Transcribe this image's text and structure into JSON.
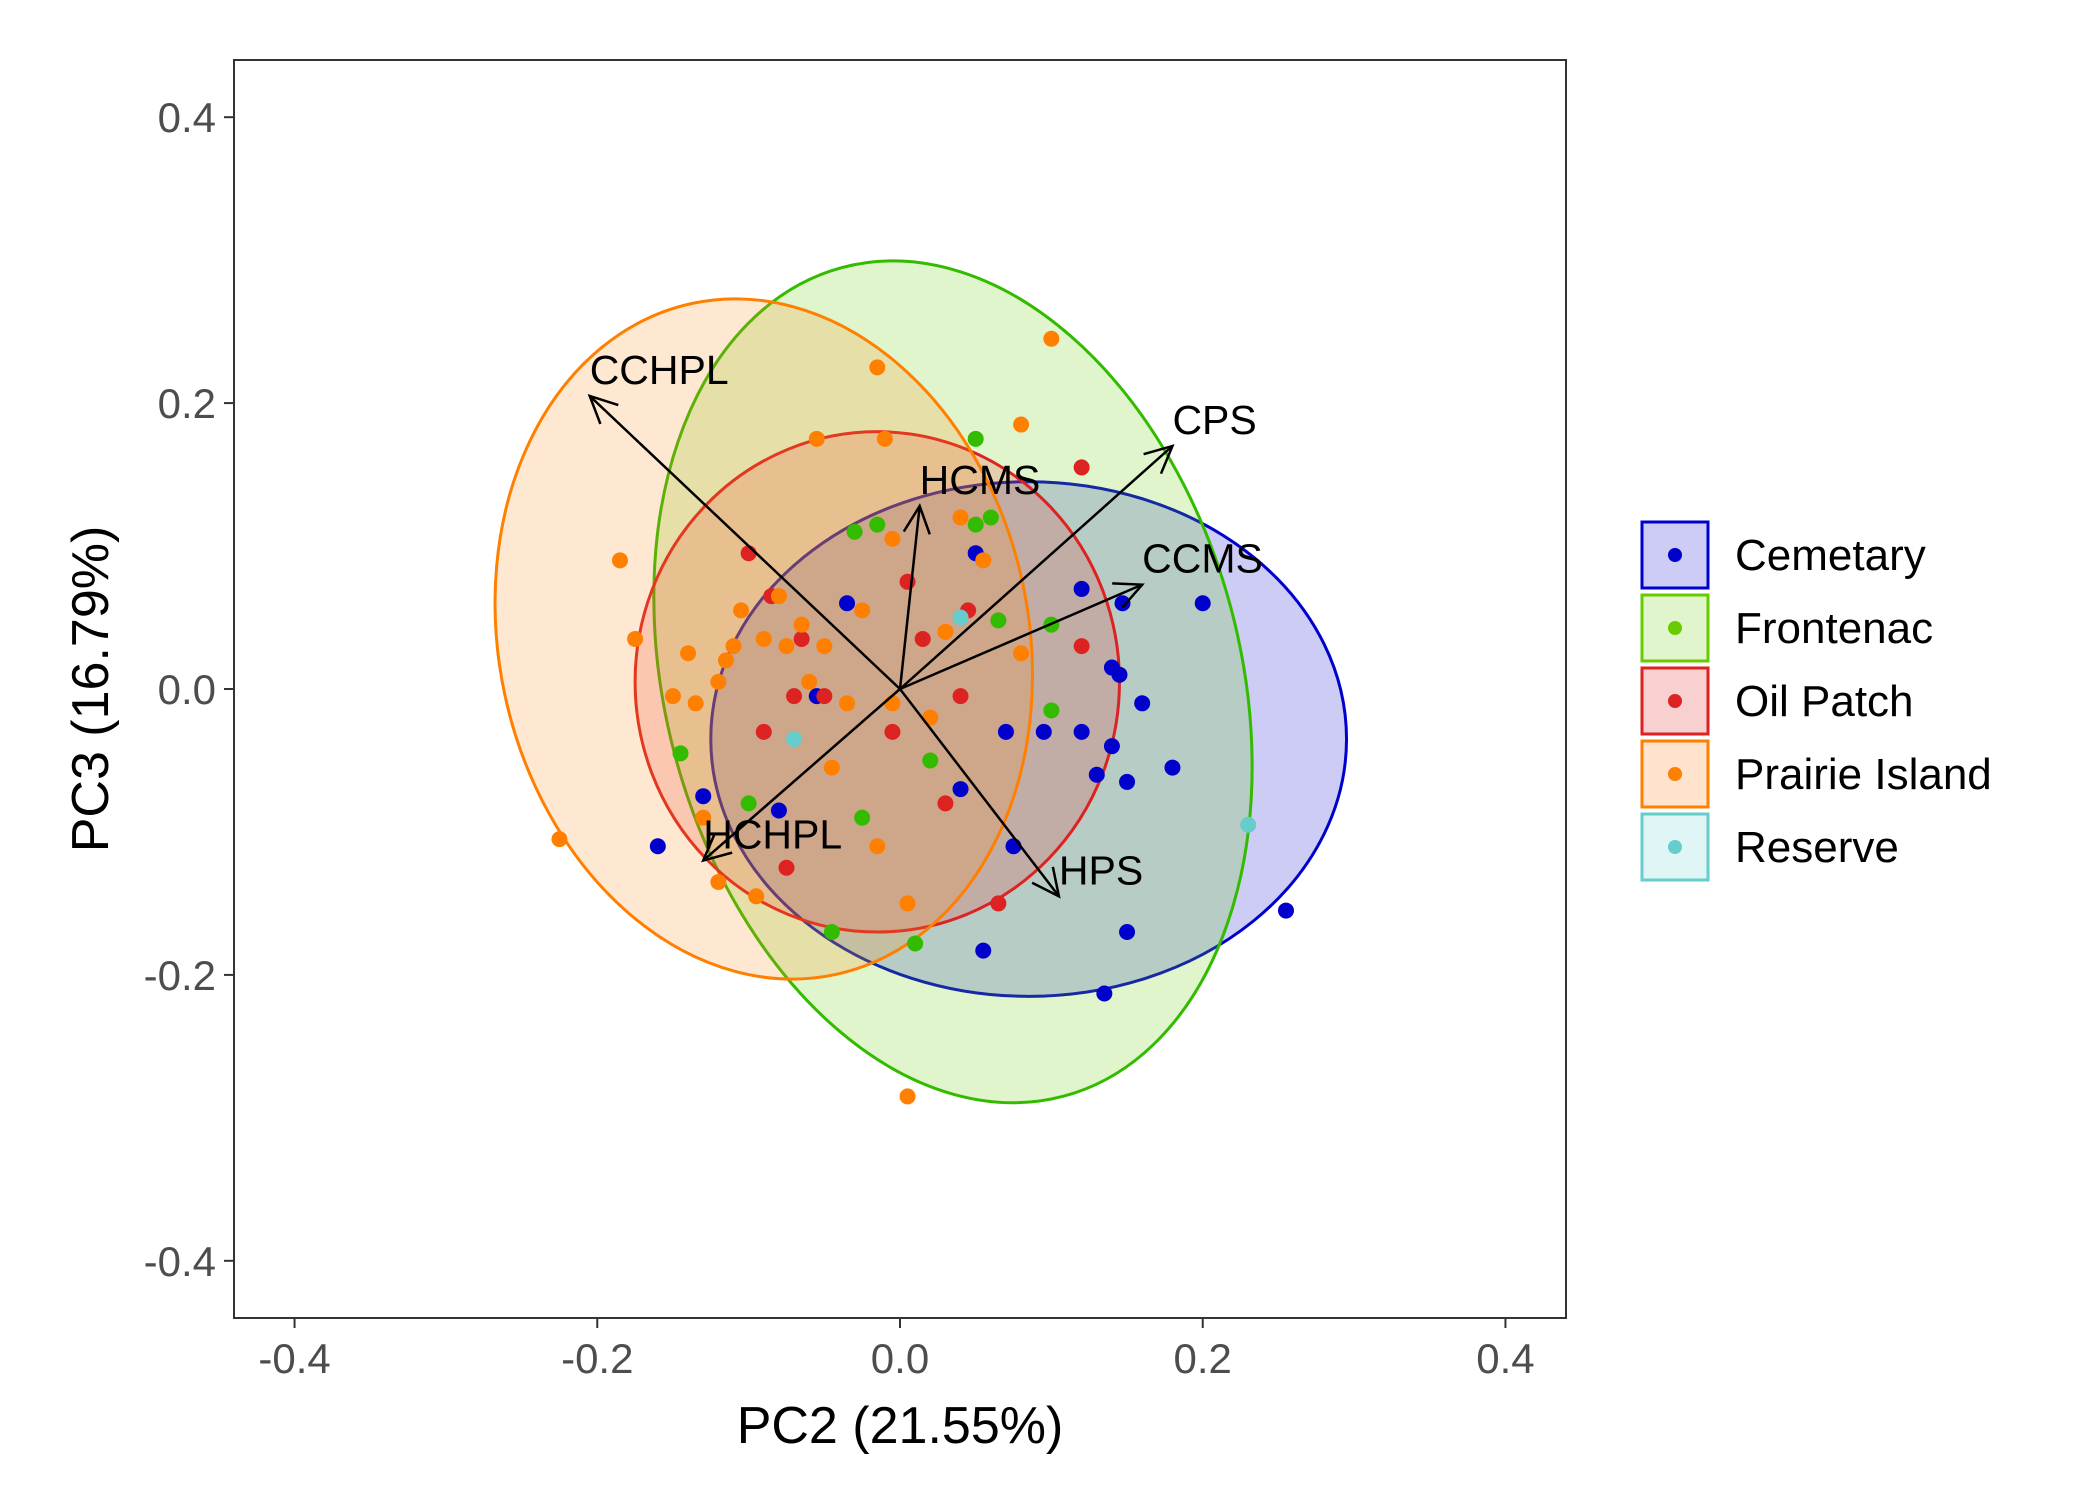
{
  "chart_data": {
    "type": "scatter",
    "xlabel": "PC2 (21.55%)",
    "ylabel": "PC3 (16.79%)",
    "xlim": [
      -0.44,
      0.44
    ],
    "ylim": [
      -0.44,
      0.44
    ],
    "x_ticks": [
      -0.4,
      -0.2,
      0.0,
      0.2,
      0.4
    ],
    "y_ticks": [
      -0.4,
      -0.2,
      0.0,
      0.2,
      0.4
    ],
    "x_tick_labels": [
      "-0.4",
      "-0.2",
      "0.0",
      "0.2",
      "0.4"
    ],
    "y_tick_labels": [
      "-0.4",
      "-0.2",
      "0.0",
      "0.2",
      "0.4"
    ],
    "grid": false,
    "legend_position": "right",
    "series": [
      {
        "name": "Cemetary",
        "color": "#0000cc",
        "fill": "#0000cc",
        "ellipse": {
          "cx": 0.085,
          "cy": -0.035,
          "rx": 0.21,
          "ry": 0.18,
          "angle": 0
        },
        "points": [
          [
            -0.16,
            -0.11
          ],
          [
            -0.13,
            -0.075
          ],
          [
            -0.08,
            -0.085
          ],
          [
            -0.035,
            0.06
          ],
          [
            -0.055,
            -0.005
          ],
          [
            0.05,
            0.095
          ],
          [
            0.04,
            -0.07
          ],
          [
            0.07,
            -0.03
          ],
          [
            0.075,
            -0.11
          ],
          [
            0.095,
            -0.03
          ],
          [
            0.12,
            0.07
          ],
          [
            0.12,
            -0.03
          ],
          [
            0.13,
            -0.06
          ],
          [
            0.14,
            -0.04
          ],
          [
            0.14,
            0.015
          ],
          [
            0.145,
            0.01
          ],
          [
            0.147,
            0.06
          ],
          [
            0.15,
            -0.065
          ],
          [
            0.16,
            -0.01
          ],
          [
            0.18,
            -0.055
          ],
          [
            0.2,
            0.06
          ],
          [
            0.15,
            -0.17
          ],
          [
            0.135,
            -0.213
          ],
          [
            0.055,
            -0.183
          ],
          [
            0.255,
            -0.155
          ]
        ]
      },
      {
        "name": "Frontenac",
        "color": "#33bb00",
        "fill": "#66cc00",
        "ellipse": {
          "cx": 0.035,
          "cy": 0.005,
          "rx": 0.19,
          "ry": 0.3,
          "angle": 15
        },
        "points": [
          [
            -0.145,
            -0.045
          ],
          [
            -0.1,
            -0.08
          ],
          [
            -0.03,
            0.11
          ],
          [
            -0.025,
            -0.09
          ],
          [
            -0.015,
            0.115
          ],
          [
            0.02,
            -0.05
          ],
          [
            0.05,
            0.175
          ],
          [
            0.05,
            0.115
          ],
          [
            0.06,
            0.12
          ],
          [
            0.065,
            0.048
          ],
          [
            0.1,
            -0.015
          ],
          [
            0.1,
            0.045
          ],
          [
            -0.045,
            -0.17
          ],
          [
            0.01,
            -0.178
          ]
        ]
      },
      {
        "name": "Oil Patch",
        "color": "#dd2222",
        "fill": "#ee3333",
        "ellipse": {
          "cx": -0.015,
          "cy": 0.005,
          "rx": 0.16,
          "ry": 0.175,
          "angle": 0
        },
        "points": [
          [
            -0.1,
            0.095
          ],
          [
            -0.085,
            0.065
          ],
          [
            -0.09,
            -0.03
          ],
          [
            -0.065,
            0.035
          ],
          [
            -0.07,
            -0.005
          ],
          [
            -0.05,
            -0.005
          ],
          [
            0.005,
            0.075
          ],
          [
            0.015,
            0.035
          ],
          [
            0.03,
            -0.08
          ],
          [
            0.045,
            0.055
          ],
          [
            0.04,
            -0.005
          ],
          [
            -0.005,
            -0.03
          ],
          [
            0.065,
            -0.15
          ],
          [
            0.12,
            0.155
          ],
          [
            0.12,
            0.03
          ],
          [
            -0.075,
            -0.125
          ]
        ]
      },
      {
        "name": "Prairie Island",
        "color": "#ff7f00",
        "fill": "#ff8c1a",
        "ellipse": {
          "cx": -0.09,
          "cy": 0.035,
          "rx": 0.175,
          "ry": 0.24,
          "angle": 12
        },
        "points": [
          [
            -0.225,
            -0.105
          ],
          [
            -0.185,
            0.09
          ],
          [
            -0.175,
            0.035
          ],
          [
            -0.15,
            -0.005
          ],
          [
            -0.135,
            -0.01
          ],
          [
            -0.13,
            -0.09
          ],
          [
            -0.115,
            0.02
          ],
          [
            -0.11,
            0.03
          ],
          [
            -0.105,
            0.055
          ],
          [
            -0.09,
            0.035
          ],
          [
            -0.08,
            0.065
          ],
          [
            -0.075,
            0.03
          ],
          [
            -0.065,
            0.045
          ],
          [
            -0.06,
            0.005
          ],
          [
            -0.05,
            0.03
          ],
          [
            -0.045,
            -0.055
          ],
          [
            -0.035,
            -0.01
          ],
          [
            -0.025,
            0.055
          ],
          [
            -0.015,
            0.225
          ],
          [
            -0.01,
            0.175
          ],
          [
            -0.005,
            0.105
          ],
          [
            -0.005,
            -0.01
          ],
          [
            0.02,
            -0.02
          ],
          [
            0.03,
            0.04
          ],
          [
            0.04,
            0.12
          ],
          [
            0.055,
            0.09
          ],
          [
            0.08,
            0.185
          ],
          [
            0.1,
            0.245
          ],
          [
            0.08,
            0.025
          ],
          [
            -0.015,
            -0.11
          ],
          [
            0.005,
            -0.15
          ],
          [
            -0.095,
            -0.145
          ],
          [
            -0.055,
            0.175
          ],
          [
            0.005,
            -0.285
          ],
          [
            -0.12,
            -0.135
          ],
          [
            -0.14,
            0.025
          ],
          [
            -0.12,
            0.005
          ]
        ]
      },
      {
        "name": "Reserve",
        "color": "#66cccc",
        "fill": "#66cccc",
        "ellipse": null,
        "points": [
          [
            0.23,
            -0.095
          ],
          [
            0.04,
            0.05
          ],
          [
            -0.07,
            -0.035
          ]
        ]
      }
    ],
    "loadings": [
      {
        "name": "CCHPL",
        "x": -0.205,
        "y": 0.205
      },
      {
        "name": "CPS",
        "x": 0.18,
        "y": 0.17
      },
      {
        "name": "HCMS",
        "x": 0.013,
        "y": 0.128
      },
      {
        "name": "CCMS",
        "x": 0.16,
        "y": 0.073
      },
      {
        "name": "HCHPL",
        "x": -0.13,
        "y": -0.12
      },
      {
        "name": "HPS",
        "x": 0.105,
        "y": -0.145
      }
    ]
  },
  "legend": {
    "items": [
      {
        "label": "Cemetary",
        "color": "#0000cc",
        "fill": "#ccccf5"
      },
      {
        "label": "Frontenac",
        "color": "#66cc00",
        "fill": "#e0f5cc"
      },
      {
        "label": "Oil Patch",
        "color": "#dd2222",
        "fill": "#f8d0d0"
      },
      {
        "label": "Prairie Island",
        "color": "#ff7f00",
        "fill": "#ffe3cc"
      },
      {
        "label": "Reserve",
        "color": "#66cccc",
        "fill": "#e0f5f5"
      }
    ]
  }
}
